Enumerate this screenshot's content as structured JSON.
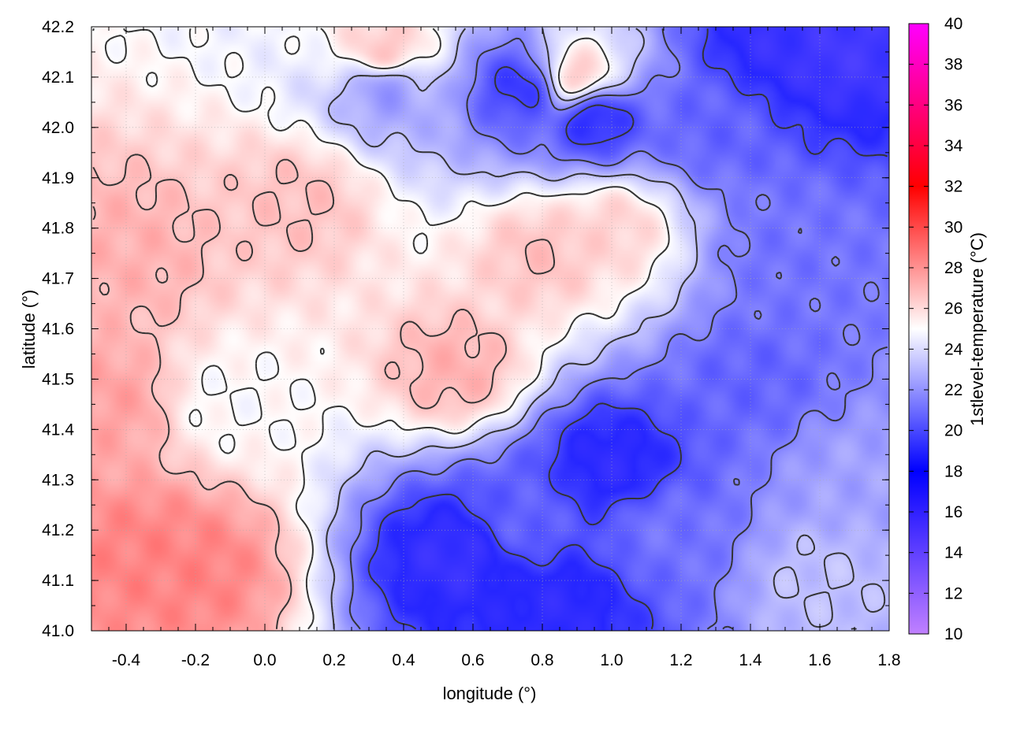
{
  "chart_data": {
    "type": "heatmap",
    "xlabel": "longitude (°)",
    "ylabel": "latitude (°)",
    "colorbar_label": "1stlevel-temperature (°C)",
    "xlim": [
      -0.5,
      1.8
    ],
    "ylim": [
      41.0,
      42.2
    ],
    "x_ticks": [
      -0.4,
      -0.2,
      0.0,
      0.2,
      0.4,
      0.6,
      0.8,
      1.0,
      1.2,
      1.4,
      1.6,
      1.8
    ],
    "x_tick_labels": [
      "-0.4",
      "-0.2",
      "0.0",
      "0.2",
      "0.4",
      "0.6",
      "0.8",
      "1.0",
      "1.2",
      "1.4",
      "1.6",
      "1.8"
    ],
    "y_ticks": [
      41.0,
      41.1,
      41.2,
      41.3,
      41.4,
      41.5,
      41.6,
      41.7,
      41.8,
      41.9,
      42.0,
      42.1,
      42.2
    ],
    "y_tick_labels": [
      "41.0",
      "41.1",
      "41.2",
      "41.3",
      "41.4",
      "41.5",
      "41.6",
      "41.7",
      "41.8",
      "41.9",
      "42.0",
      "42.1",
      "42.2"
    ],
    "colorbar_range": [
      10,
      40
    ],
    "colorbar_ticks": [
      10,
      12,
      14,
      16,
      18,
      20,
      22,
      24,
      26,
      28,
      30,
      32,
      34,
      36,
      38,
      40
    ],
    "colorbar_tick_labels": [
      "10",
      "12",
      "14",
      "16",
      "18",
      "20",
      "22",
      "24",
      "26",
      "28",
      "30",
      "32",
      "34",
      "36",
      "38",
      "40"
    ],
    "colormap": [
      {
        "value": 10,
        "color": "#c080ff"
      },
      {
        "value": 18,
        "color": "#0000ff"
      },
      {
        "value": 25,
        "color": "#ffffff"
      },
      {
        "value": 32,
        "color": "#ff0000"
      },
      {
        "value": 40,
        "color": "#ff00ff"
      }
    ],
    "grid": true,
    "contours": true,
    "field_hotspots": [
      {
        "lon": -0.35,
        "lat": 41.15,
        "temp": 29.0
      },
      {
        "lon": -0.2,
        "lat": 41.12,
        "temp": 29.0
      },
      {
        "lon": -0.45,
        "lat": 41.45,
        "temp": 28.0
      },
      {
        "lon": -0.4,
        "lat": 41.75,
        "temp": 27.5
      },
      {
        "lon": 0.55,
        "lat": 41.52,
        "temp": 27.5
      },
      {
        "lon": 0.8,
        "lat": 41.75,
        "temp": 27.0
      },
      {
        "lon": 0.1,
        "lat": 41.85,
        "temp": 27.0
      },
      {
        "lon": 0.35,
        "lat": 42.15,
        "temp": 27.0
      },
      {
        "lon": 0.9,
        "lat": 42.1,
        "temp": 27.0
      },
      {
        "lon": 1.0,
        "lat": 41.8,
        "temp": 26.5
      },
      {
        "lon": -0.1,
        "lat": 41.45,
        "temp": 25.0
      },
      {
        "lon": 0.55,
        "lat": 41.15,
        "temp": 17.0
      },
      {
        "lon": 0.85,
        "lat": 41.05,
        "temp": 17.5
      },
      {
        "lon": 1.0,
        "lat": 41.33,
        "temp": 17.5
      },
      {
        "lon": 0.75,
        "lat": 41.22,
        "temp": 20.0
      },
      {
        "lon": 1.4,
        "lat": 41.5,
        "temp": 20.0
      },
      {
        "lon": 1.5,
        "lat": 41.75,
        "temp": 20.5
      },
      {
        "lon": 1.3,
        "lat": 42.0,
        "temp": 20.0
      },
      {
        "lon": 1.65,
        "lat": 42.15,
        "temp": 16.5
      },
      {
        "lon": 1.5,
        "lat": 42.18,
        "temp": 17.0
      },
      {
        "lon": 0.75,
        "lat": 42.08,
        "temp": 18.5
      },
      {
        "lon": 0.95,
        "lat": 42.02,
        "temp": 18.0
      },
      {
        "lon": 0.35,
        "lat": 42.08,
        "temp": 21.5
      },
      {
        "lon": 1.6,
        "lat": 41.1,
        "temp": 23.0
      },
      {
        "lon": 1.7,
        "lat": 41.3,
        "temp": 22.0
      },
      {
        "lon": 1.15,
        "lat": 41.2,
        "temp": 20.5
      }
    ]
  }
}
